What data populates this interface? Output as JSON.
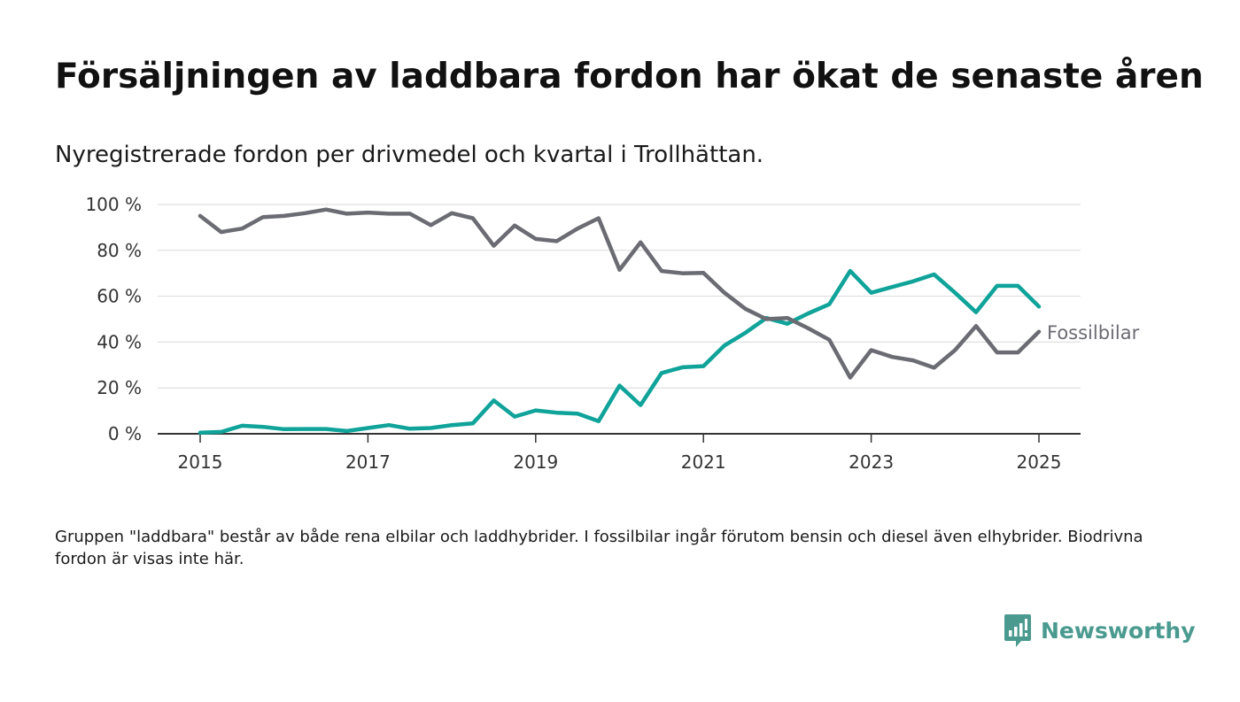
{
  "title": "Försäljningen av laddbara fordon har ökat de senaste åren",
  "subtitle": "Nyregistrerade fordon per drivmedel och kvartal i Trollhättan.",
  "footnote": "Gruppen \"laddbara\" består av både rena elbilar och laddhybrider. I fossilbilar ingår förutom bensin och diesel även elhybrider. Biodrivna fordon är visas inte här.",
  "brand": {
    "name": "Newsworthy",
    "icon": "newsworthy-logo-icon",
    "color": "#4a9a8f"
  },
  "chart_data": {
    "type": "line",
    "x_axis": {
      "ticks": [
        2015,
        2017,
        2019,
        2021,
        2023,
        2025
      ],
      "tick_labels": [
        "2015",
        "2017",
        "2019",
        "2021",
        "2023",
        "2025"
      ],
      "range": [
        2014.5,
        2025.5
      ]
    },
    "y_axis": {
      "ticks": [
        0,
        20,
        40,
        60,
        80,
        100
      ],
      "tick_labels": [
        "0 %",
        "20 %",
        "40 %",
        "60 %",
        "80 %",
        "100 %"
      ],
      "range": [
        0,
        100
      ]
    },
    "grid": true,
    "x": [
      2015.0,
      2015.25,
      2015.5,
      2015.75,
      2016.0,
      2016.25,
      2016.5,
      2016.75,
      2017.0,
      2017.25,
      2017.5,
      2017.75,
      2018.0,
      2018.25,
      2018.5,
      2018.75,
      2019.0,
      2019.25,
      2019.5,
      2019.75,
      2020.0,
      2020.25,
      2020.5,
      2020.75,
      2021.0,
      2021.25,
      2021.5,
      2021.75,
      2022.0,
      2022.25,
      2022.5,
      2022.75,
      2023.0,
      2023.25,
      2023.5,
      2023.75,
      2024.0,
      2024.25,
      2024.5,
      2024.75,
      2025.0
    ],
    "series": [
      {
        "name": "",
        "color": "#0fa39a",
        "values": [
          0.5,
          0.8,
          3.5,
          3.0,
          2.0,
          2.1,
          2.1,
          1.2,
          2.5,
          3.8,
          2.2,
          2.5,
          3.8,
          4.5,
          14.5,
          7.5,
          10.2,
          9.2,
          8.8,
          5.5,
          21.0,
          12.5,
          26.5,
          29.0,
          29.5,
          38.5,
          44.0,
          50.5,
          48.0,
          52.5,
          56.5,
          71.0,
          61.5,
          64.0,
          66.5,
          69.5,
          61.5,
          53.0,
          64.5,
          64.5,
          55.5
        ]
      },
      {
        "name": "Fossilbilar",
        "color": "#6b6b73",
        "values": [
          95.0,
          88.0,
          89.5,
          94.5,
          95.0,
          96.2,
          97.8,
          96.0,
          96.5,
          96.0,
          96.0,
          91.0,
          96.2,
          94.0,
          82.0,
          90.8,
          85.0,
          84.0,
          89.5,
          94.0,
          71.5,
          83.5,
          71.0,
          70.0,
          70.2,
          61.5,
          54.5,
          50.0,
          50.5,
          46.0,
          41.0,
          24.5,
          36.5,
          33.5,
          32.0,
          28.8,
          36.5,
          47.0,
          35.5,
          35.5,
          44.5
        ]
      }
    ],
    "title": "Försäljningen av laddbara fordon har ökat de senaste åren",
    "subtitle": "Nyregistrerade fordon per drivmedel och kvartal i Trollhättan.",
    "xlabel": "",
    "ylabel": ""
  }
}
